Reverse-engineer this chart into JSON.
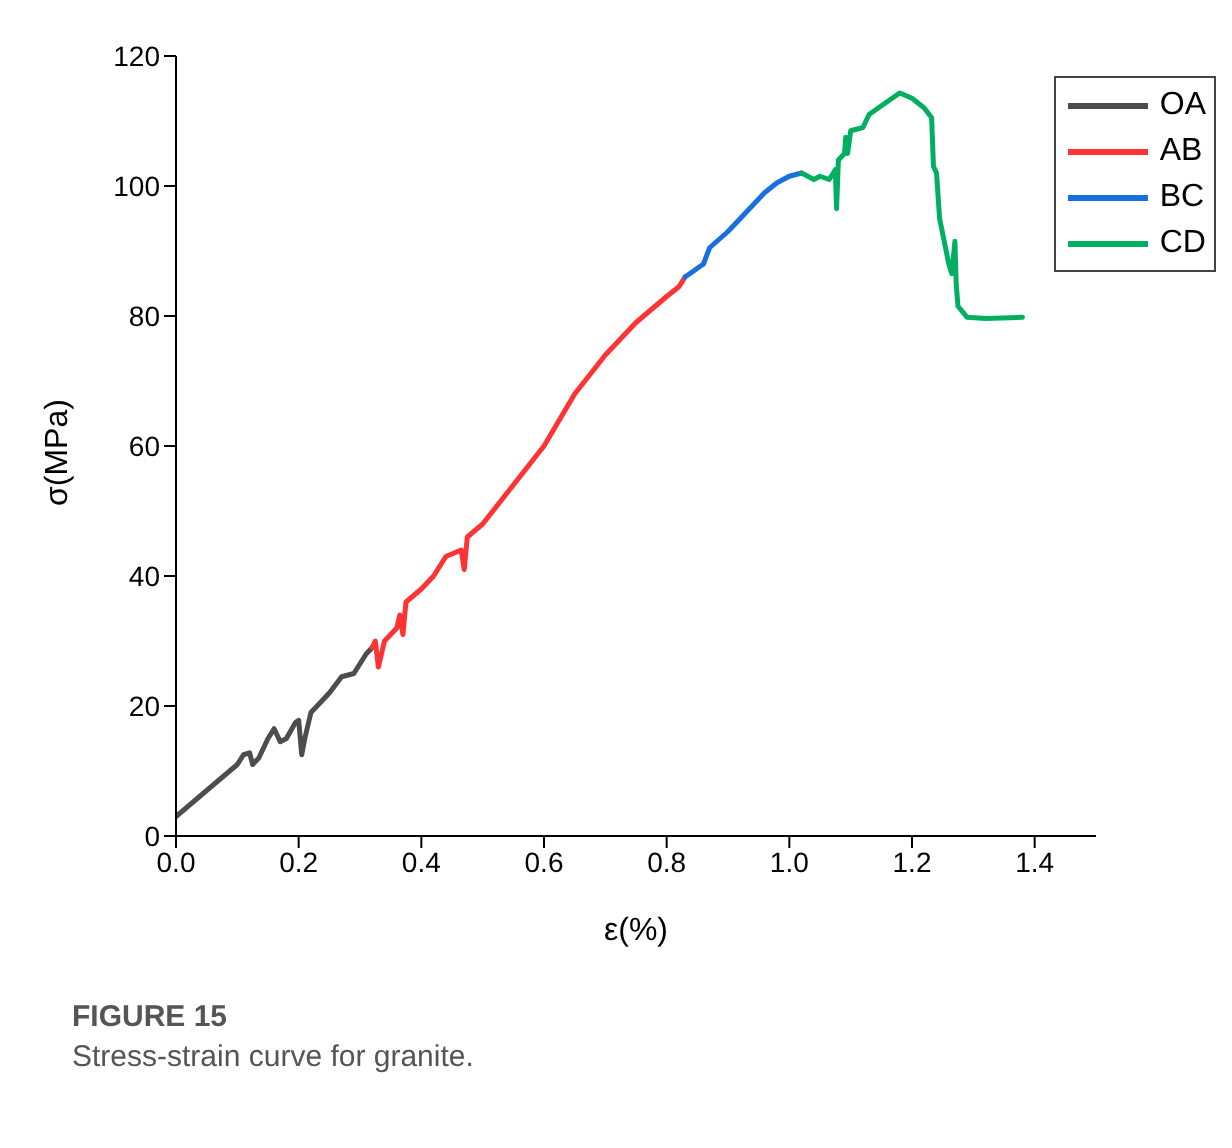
{
  "chart_data": {
    "type": "line",
    "xlabel": "ε(%)",
    "ylabel": "σ(MPa)",
    "xlim": [
      0,
      1.5
    ],
    "xticks": [
      {
        "value": 0,
        "label": "0.0"
      },
      0.2,
      0.4,
      0.6,
      0.8,
      {
        "value": 1,
        "label": "1.0"
      },
      1.2,
      1.4
    ],
    "ylim": [
      0,
      120
    ],
    "yticks": [
      0,
      20,
      40,
      60,
      80,
      100,
      120
    ],
    "grid": false,
    "legend": "top right",
    "marker": "none",
    "line_style": "solid",
    "annotations": [
      "FIGURE 15",
      "Stress-strain curve for granite."
    ],
    "series": [
      {
        "name": "OA",
        "color": "#4d4d4d",
        "x": [
          0,
          0.05,
          0.1,
          0.11,
          0.12,
          0.125,
          0.135,
          0.15,
          0.16,
          0.17,
          0.18,
          0.195,
          0.2,
          0.205,
          0.21,
          0.22,
          0.25,
          0.27,
          0.29,
          0.31,
          0.32
        ],
        "values": [
          3,
          7,
          11,
          12.5,
          12.8,
          11,
          12,
          15,
          16.5,
          14.5,
          15,
          17.5,
          17.8,
          12.5,
          15,
          19,
          22,
          24.5,
          25,
          28,
          29
        ]
      },
      {
        "name": "AB",
        "color": "#ff3333",
        "x": [
          0.32,
          0.325,
          0.33,
          0.34,
          0.36,
          0.365,
          0.37,
          0.375,
          0.4,
          0.42,
          0.44,
          0.465,
          0.47,
          0.475,
          0.5,
          0.55,
          0.6,
          0.65,
          0.7,
          0.75,
          0.8,
          0.82,
          0.83
        ],
        "values": [
          29,
          30,
          26,
          30,
          32,
          34,
          31,
          36,
          38,
          40,
          43,
          44,
          41,
          46,
          48,
          54,
          60,
          68,
          74,
          79,
          83,
          84.5,
          86
        ]
      },
      {
        "name": "BC",
        "color": "#1a6fdf",
        "x": [
          0.83,
          0.86,
          0.87,
          0.9,
          0.93,
          0.96,
          0.98,
          1.0,
          1.02
        ],
        "values": [
          86,
          88,
          90.5,
          93,
          96,
          99,
          100.5,
          101.5,
          102
        ]
      },
      {
        "name": "CD",
        "color": "#00b060",
        "x": [
          1.02,
          1.04,
          1.05,
          1.065,
          1.075,
          1.077,
          1.08,
          1.09,
          1.092,
          1.095,
          1.1,
          1.12,
          1.13,
          1.16,
          1.18,
          1.2,
          1.22,
          1.232,
          1.235,
          1.24,
          1.245,
          1.26,
          1.265,
          1.27,
          1.272,
          1.275,
          1.29,
          1.32,
          1.38
        ],
        "values": [
          102,
          101,
          101.5,
          101,
          102.5,
          96.5,
          104,
          105,
          107.5,
          105,
          108.5,
          109,
          111,
          113,
          114.3,
          113.5,
          112,
          110.5,
          103,
          102,
          95,
          88,
          86.5,
          91.5,
          85,
          81.5,
          79.8,
          79.6,
          79.8
        ]
      }
    ]
  }
}
